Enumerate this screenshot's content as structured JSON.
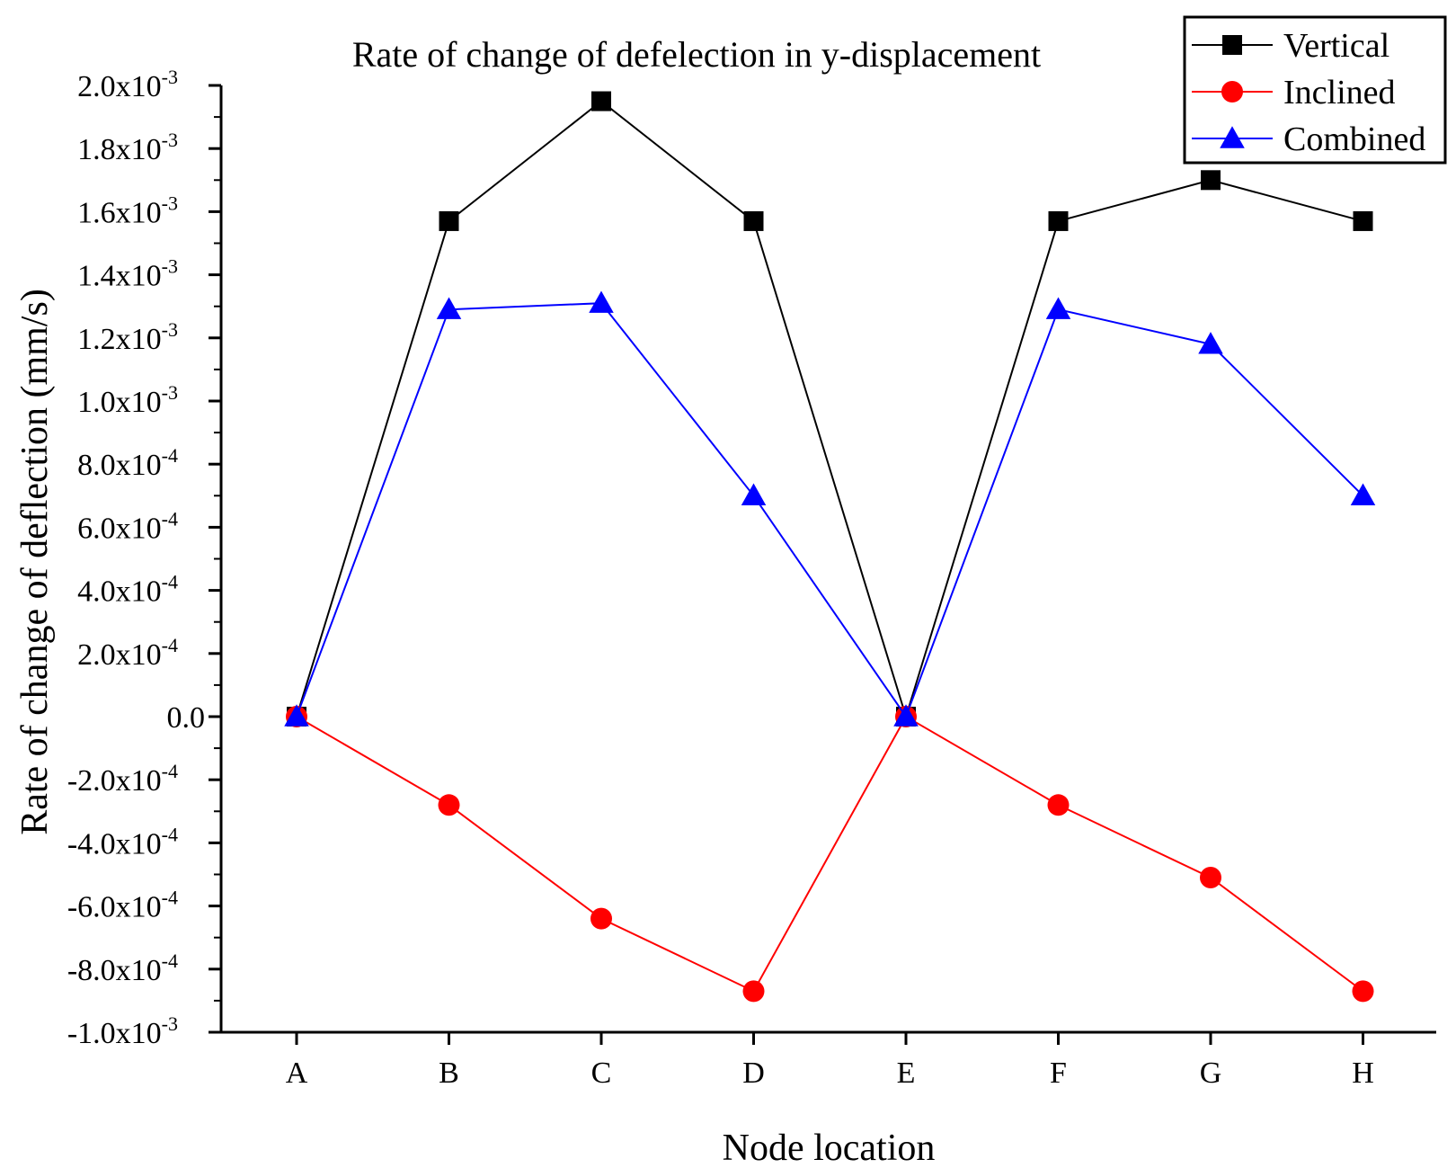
{
  "chart_data": {
    "type": "line",
    "title": "Rate of change of defelection in y-displacement",
    "xlabel": "Node location",
    "ylabel": "Rate of change of deflection (mm/s)",
    "categories": [
      "A",
      "B",
      "C",
      "D",
      "E",
      "F",
      "G",
      "H"
    ],
    "ylim": [
      -0.001,
      0.002
    ],
    "y_ticks": [
      {
        "value": 0.002,
        "mantissa": "2.0x10",
        "exp": "-3"
      },
      {
        "value": 0.0018,
        "mantissa": "1.8x10",
        "exp": "-3"
      },
      {
        "value": 0.0016,
        "mantissa": "1.6x10",
        "exp": "-3"
      },
      {
        "value": 0.0014,
        "mantissa": "1.4x10",
        "exp": "-3"
      },
      {
        "value": 0.0012,
        "mantissa": "1.2x10",
        "exp": "-3"
      },
      {
        "value": 0.001,
        "mantissa": "1.0x10",
        "exp": "-3"
      },
      {
        "value": 0.0008,
        "mantissa": "8.0x10",
        "exp": "-4"
      },
      {
        "value": 0.0006,
        "mantissa": "6.0x10",
        "exp": "-4"
      },
      {
        "value": 0.0004,
        "mantissa": "4.0x10",
        "exp": "-4"
      },
      {
        "value": 0.0002,
        "mantissa": "2.0x10",
        "exp": "-4"
      },
      {
        "value": 0,
        "mantissa": "0.0",
        "exp": ""
      },
      {
        "value": -0.0002,
        "mantissa": "-2.0x10",
        "exp": "-4"
      },
      {
        "value": -0.0004,
        "mantissa": "-4.0x10",
        "exp": "-4"
      },
      {
        "value": -0.0006,
        "mantissa": "-6.0x10",
        "exp": "-4"
      },
      {
        "value": -0.0008,
        "mantissa": "-8.0x10",
        "exp": "-4"
      },
      {
        "value": -0.001,
        "mantissa": "-1.0x10",
        "exp": "-3"
      }
    ],
    "legend_position": "top-right",
    "grid": false,
    "series": [
      {
        "name": "Vertical",
        "color": "#000000",
        "marker": "square",
        "values": [
          0.0,
          0.00157,
          0.00195,
          0.00157,
          0.0,
          0.00157,
          0.0017,
          0.00157
        ]
      },
      {
        "name": "Inclined",
        "color": "#ff0000",
        "marker": "circle",
        "values": [
          0.0,
          -0.00028,
          -0.00064,
          -0.00087,
          0.0,
          -0.00028,
          -0.00051,
          -0.00087
        ]
      },
      {
        "name": "Combined",
        "color": "#0000ff",
        "marker": "triangle",
        "values": [
          0.0,
          0.00129,
          0.00131,
          0.0007,
          0.0,
          0.00129,
          0.00118,
          0.0007
        ]
      }
    ]
  }
}
